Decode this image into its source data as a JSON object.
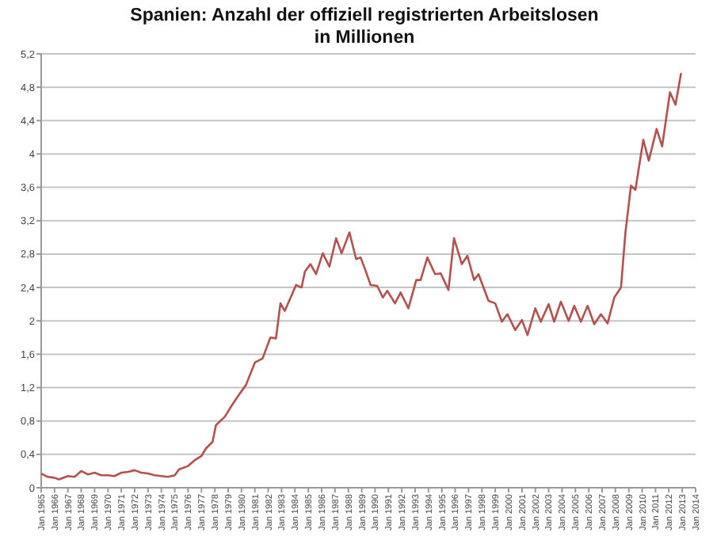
{
  "chart_data": {
    "type": "line",
    "title": "Spanien: Anzahl der offiziell registrierten Arbeitslosen\nin Millionen",
    "x": [
      "1965-01",
      "1965-07",
      "1966-01",
      "1966-05",
      "1967-01",
      "1967-07",
      "1968-01",
      "1968-07",
      "1969-01",
      "1969-07",
      "1970-01",
      "1970-07",
      "1971-01",
      "1971-07",
      "1972-01",
      "1972-07",
      "1973-01",
      "1973-07",
      "1974-01",
      "1974-07",
      "1975-01",
      "1975-05",
      "1975-11",
      "1976-01",
      "1976-07",
      "1977-01",
      "1977-05",
      "1977-11",
      "1978-02",
      "1978-10",
      "1979-04",
      "1979-10",
      "1980-05",
      "1981-01",
      "1981-08",
      "1982-03",
      "1982-08",
      "1982-12",
      "1983-04",
      "1984-02",
      "1984-07",
      "1984-10",
      "1985-03",
      "1985-08",
      "1986-02",
      "1986-08",
      "1987-02",
      "1987-07",
      "1988-02",
      "1988-08",
      "1988-12",
      "1989-04",
      "1989-09",
      "1990-03",
      "1990-08",
      "1990-12",
      "1991-07",
      "1991-12",
      "1992-07",
      "1993-02",
      "1993-06",
      "1993-12",
      "1994-07",
      "1994-12",
      "1995-07",
      "1995-12",
      "1996-07",
      "1996-12",
      "1997-06",
      "1997-10",
      "1998-07",
      "1999-01",
      "1999-07",
      "1999-12",
      "2000-07",
      "2001-01",
      "2001-06",
      "2002-01",
      "2002-06",
      "2003-01",
      "2003-06",
      "2003-12",
      "2004-07",
      "2004-12",
      "2005-06",
      "2005-12",
      "2006-06",
      "2006-12",
      "2007-06",
      "2007-12",
      "2008-06",
      "2008-10",
      "2009-03",
      "2009-07",
      "2010-02",
      "2010-07",
      "2011-02",
      "2011-07",
      "2012-02",
      "2012-07",
      "2012-12"
    ],
    "series": [
      {
        "color": "#b5504c",
        "values": [
          0.17,
          0.13,
          0.12,
          0.1,
          0.14,
          0.13,
          0.2,
          0.16,
          0.18,
          0.15,
          0.15,
          0.14,
          0.18,
          0.19,
          0.21,
          0.18,
          0.17,
          0.15,
          0.14,
          0.13,
          0.15,
          0.22,
          0.25,
          0.26,
          0.33,
          0.38,
          0.47,
          0.55,
          0.75,
          0.85,
          0.98,
          1.1,
          1.23,
          1.5,
          1.55,
          1.8,
          1.79,
          2.21,
          2.12,
          2.43,
          2.4,
          2.59,
          2.68,
          2.56,
          2.81,
          2.65,
          2.99,
          2.81,
          3.06,
          2.74,
          2.76,
          2.62,
          2.43,
          2.42,
          2.28,
          2.36,
          2.21,
          2.34,
          2.15,
          2.49,
          2.49,
          2.76,
          2.56,
          2.57,
          2.37,
          2.99,
          2.68,
          2.78,
          2.49,
          2.56,
          2.24,
          2.21,
          1.99,
          2.08,
          1.89,
          2.01,
          1.83,
          2.15,
          1.99,
          2.2,
          1.99,
          2.23,
          2.0,
          2.18,
          1.99,
          2.18,
          1.96,
          2.08,
          1.97,
          2.28,
          2.4,
          3.06,
          3.62,
          3.57,
          4.17,
          3.92,
          4.3,
          4.09,
          4.74,
          4.59,
          4.97
        ]
      }
    ],
    "xlim": [
      "1965-01",
      "2014-01"
    ],
    "xticks": [
      {
        "value": "1965-01",
        "label": "Jan 1965"
      },
      {
        "value": "1966-01",
        "label": "Jan 1966"
      },
      {
        "value": "1967-01",
        "label": "Jan 1967"
      },
      {
        "value": "1968-01",
        "label": "Jan 1968"
      },
      {
        "value": "1969-01",
        "label": "Jan 1969"
      },
      {
        "value": "1970-01",
        "label": "Jan 1970"
      },
      {
        "value": "1971-01",
        "label": "Jan 1971"
      },
      {
        "value": "1972-01",
        "label": "Jan 1972"
      },
      {
        "value": "1973-01",
        "label": "Jan 1973"
      },
      {
        "value": "1974-01",
        "label": "Jan 1974"
      },
      {
        "value": "1975-01",
        "label": "Jan 1975"
      },
      {
        "value": "1976-01",
        "label": "Jan 1976"
      },
      {
        "value": "1977-01",
        "label": "Jan 1977"
      },
      {
        "value": "1978-01",
        "label": "Jan 1978"
      },
      {
        "value": "1979-01",
        "label": "Jan 1979"
      },
      {
        "value": "1980-01",
        "label": "Jan 1980"
      },
      {
        "value": "1981-01",
        "label": "Jan 1981"
      },
      {
        "value": "1982-01",
        "label": "Jan 1982"
      },
      {
        "value": "1983-01",
        "label": "Jan 1983"
      },
      {
        "value": "1984-01",
        "label": "Jan 1984"
      },
      {
        "value": "1985-01",
        "label": "Jan 1985"
      },
      {
        "value": "1986-01",
        "label": "Jan 1986"
      },
      {
        "value": "1987-01",
        "label": "Jan 1987"
      },
      {
        "value": "1988-01",
        "label": "Jan 1988"
      },
      {
        "value": "1989-01",
        "label": "Jan 1989"
      },
      {
        "value": "1990-01",
        "label": "Jan 1990"
      },
      {
        "value": "1991-01",
        "label": "Jan 1991"
      },
      {
        "value": "1992-01",
        "label": "Jan 1992"
      },
      {
        "value": "1993-01",
        "label": "Jan 1993"
      },
      {
        "value": "1994-01",
        "label": "Jan 1994"
      },
      {
        "value": "1995-01",
        "label": "Jan 1995"
      },
      {
        "value": "1996-01",
        "label": "Jan 1996"
      },
      {
        "value": "1997-01",
        "label": "Jan 1997"
      },
      {
        "value": "1998-01",
        "label": "Jan 1998"
      },
      {
        "value": "1999-01",
        "label": "Jan 1999"
      },
      {
        "value": "2000-01",
        "label": "Jan 2000"
      },
      {
        "value": "2001-01",
        "label": "Jan 2001"
      },
      {
        "value": "2002-01",
        "label": "Jan 2002"
      },
      {
        "value": "2003-01",
        "label": "Jan 2003"
      },
      {
        "value": "2004-01",
        "label": "Jan 2004"
      },
      {
        "value": "2005-01",
        "label": "Jan 2005"
      },
      {
        "value": "2006-01",
        "label": "Jan 2006"
      },
      {
        "value": "2007-01",
        "label": "Jan 2007"
      },
      {
        "value": "2008-01",
        "label": "Jan 2008"
      },
      {
        "value": "2009-01",
        "label": "Jan 2009"
      },
      {
        "value": "2010-01",
        "label": "Jan 2010"
      },
      {
        "value": "2011-01",
        "label": "Jan 2011"
      },
      {
        "value": "2012-01",
        "label": "Jan 2012"
      },
      {
        "value": "2013-01",
        "label": "Jan 2013"
      },
      {
        "value": "2014-01",
        "label": "Jan 2014"
      }
    ],
    "ylim": [
      0,
      5.2
    ],
    "yticks": [
      0,
      {
        "value": 0.4,
        "label": "0,4"
      },
      {
        "value": 0.8,
        "label": "0,8"
      },
      {
        "value": 1.2,
        "label": "1,2"
      },
      {
        "value": 1.6,
        "label": "1,6"
      },
      2,
      {
        "value": 2.4,
        "label": "2,4"
      },
      {
        "value": 2.8,
        "label": "2,8"
      },
      {
        "value": 3.2,
        "label": "3,2"
      },
      {
        "value": 3.6,
        "label": "3,6"
      },
      4,
      {
        "value": 4.4,
        "label": "4,4"
      },
      {
        "value": 4.8,
        "label": "4,8"
      },
      {
        "value": 5.2,
        "label": "5,2"
      }
    ],
    "grid": "y",
    "marker": "none",
    "line_style": "solid"
  }
}
